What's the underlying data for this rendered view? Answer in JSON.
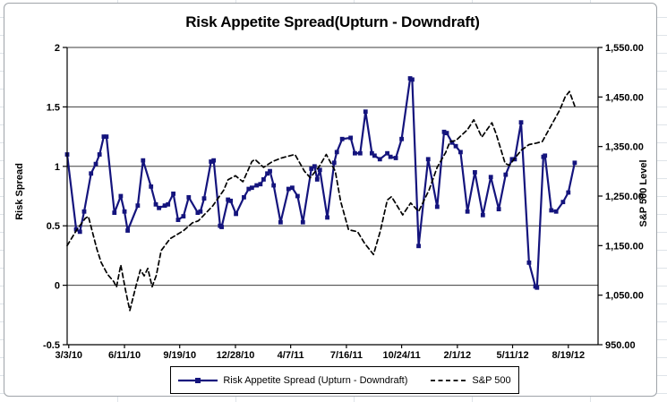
{
  "chart_data": {
    "type": "line",
    "title": "Risk Appetite Spread(Upturn - Downdraft)",
    "grid": "horizontal-only",
    "legend_position": "bottom",
    "plot_background": "#ffffff",
    "gridline_color": "#3c3c3c",
    "axis_line_color": "#000000",
    "left_axis": {
      "label": "Risk Spread",
      "min": -0.5,
      "max": 2,
      "tick_values": [
        2,
        1.5,
        1,
        0.5,
        0,
        -0.5
      ],
      "tick_labels": [
        "2",
        "1.5",
        "1",
        "0.5",
        "0",
        "-0.5"
      ]
    },
    "right_axis": {
      "label": "S&P 500 Level",
      "min": 950,
      "max": 1550,
      "tick_values": [
        1550,
        1450,
        1350,
        1250,
        1150,
        1050,
        950
      ],
      "tick_labels": [
        "1,550.00",
        "1,450.00",
        "1,350.00",
        "1,250.00",
        "1,150.00",
        "1,050.00",
        "950.00"
      ]
    },
    "x_axis": {
      "tick_labels": [
        "3/3/10",
        "6/11/10",
        "9/19/10",
        "12/28/10",
        "4/7/11",
        "7/16/11",
        "10/24/11",
        "2/1/12",
        "5/11/12",
        "8/19/12"
      ],
      "tick_positions": [
        0.003,
        0.108,
        0.212,
        0.317,
        0.421,
        0.526,
        0.63,
        0.735,
        0.839,
        0.944
      ]
    },
    "series": [
      {
        "name": "Risk Appetite Spread (Upturn - Downdraft)",
        "axis": "left",
        "color": "#14147d",
        "style": "solid",
        "marker": "square",
        "points": [
          [
            0.0,
            1.1
          ],
          [
            0.017,
            0.47
          ],
          [
            0.024,
            0.45
          ],
          [
            0.032,
            0.62
          ],
          [
            0.045,
            0.94
          ],
          [
            0.054,
            1.02
          ],
          [
            0.061,
            1.1
          ],
          [
            0.069,
            1.25
          ],
          [
            0.074,
            1.25
          ],
          [
            0.089,
            0.61
          ],
          [
            0.101,
            0.75
          ],
          [
            0.108,
            0.62
          ],
          [
            0.114,
            0.46
          ],
          [
            0.133,
            0.67
          ],
          [
            0.143,
            1.05
          ],
          [
            0.158,
            0.83
          ],
          [
            0.167,
            0.68
          ],
          [
            0.173,
            0.65
          ],
          [
            0.184,
            0.67
          ],
          [
            0.19,
            0.68
          ],
          [
            0.2,
            0.77
          ],
          [
            0.209,
            0.55
          ],
          [
            0.219,
            0.58
          ],
          [
            0.229,
            0.74
          ],
          [
            0.246,
            0.61
          ],
          [
            0.251,
            0.62
          ],
          [
            0.258,
            0.73
          ],
          [
            0.271,
            1.04
          ],
          [
            0.276,
            1.05
          ],
          [
            0.288,
            0.5
          ],
          [
            0.291,
            0.49
          ],
          [
            0.303,
            0.72
          ],
          [
            0.308,
            0.71
          ],
          [
            0.318,
            0.6
          ],
          [
            0.333,
            0.74
          ],
          [
            0.342,
            0.81
          ],
          [
            0.348,
            0.82
          ],
          [
            0.357,
            0.84
          ],
          [
            0.364,
            0.85
          ],
          [
            0.37,
            0.89
          ],
          [
            0.377,
            0.94
          ],
          [
            0.382,
            0.96
          ],
          [
            0.389,
            0.84
          ],
          [
            0.402,
            0.53
          ],
          [
            0.417,
            0.81
          ],
          [
            0.424,
            0.82
          ],
          [
            0.434,
            0.75
          ],
          [
            0.444,
            0.53
          ],
          [
            0.46,
            0.98
          ],
          [
            0.466,
            1.0
          ],
          [
            0.471,
            0.89
          ],
          [
            0.476,
            0.97
          ],
          [
            0.49,
            0.57
          ],
          [
            0.503,
            1.03
          ],
          [
            0.508,
            1.12
          ],
          [
            0.518,
            1.23
          ],
          [
            0.534,
            1.24
          ],
          [
            0.542,
            1.11
          ],
          [
            0.552,
            1.11
          ],
          [
            0.562,
            1.46
          ],
          [
            0.574,
            1.11
          ],
          [
            0.579,
            1.09
          ],
          [
            0.589,
            1.06
          ],
          [
            0.603,
            1.11
          ],
          [
            0.609,
            1.08
          ],
          [
            0.619,
            1.07
          ],
          [
            0.63,
            1.23
          ],
          [
            0.646,
            1.74
          ],
          [
            0.65,
            1.73
          ],
          [
            0.662,
            0.33
          ],
          [
            0.68,
            1.06
          ],
          [
            0.697,
            0.66
          ],
          [
            0.71,
            1.29
          ],
          [
            0.715,
            1.28
          ],
          [
            0.725,
            1.2
          ],
          [
            0.732,
            1.17
          ],
          [
            0.741,
            1.12
          ],
          [
            0.754,
            0.62
          ],
          [
            0.768,
            0.95
          ],
          [
            0.783,
            0.59
          ],
          [
            0.798,
            0.91
          ],
          [
            0.813,
            0.64
          ],
          [
            0.826,
            0.93
          ],
          [
            0.838,
            1.06
          ],
          [
            0.843,
            1.06
          ],
          [
            0.855,
            1.37
          ],
          [
            0.87,
            0.19
          ],
          [
            0.882,
            -0.01
          ],
          [
            0.885,
            -0.02
          ],
          [
            0.897,
            1.08
          ],
          [
            0.9,
            1.09
          ],
          [
            0.912,
            0.63
          ],
          [
            0.921,
            0.62
          ],
          [
            0.934,
            0.7
          ],
          [
            0.944,
            0.78
          ],
          [
            0.956,
            1.03
          ]
        ]
      },
      {
        "name": "S&P 500",
        "axis": "right",
        "color": "#000000",
        "style": "dashed",
        "marker": "none",
        "points": [
          [
            0.0,
            1150
          ],
          [
            0.017,
            1180
          ],
          [
            0.034,
            1205
          ],
          [
            0.04,
            1209
          ],
          [
            0.056,
            1143
          ],
          [
            0.064,
            1116
          ],
          [
            0.076,
            1092
          ],
          [
            0.088,
            1077
          ],
          [
            0.093,
            1066
          ],
          [
            0.101,
            1111
          ],
          [
            0.11,
            1060
          ],
          [
            0.118,
            1019
          ],
          [
            0.13,
            1070
          ],
          [
            0.138,
            1101
          ],
          [
            0.145,
            1089
          ],
          [
            0.152,
            1104
          ],
          [
            0.16,
            1067
          ],
          [
            0.168,
            1090
          ],
          [
            0.177,
            1140
          ],
          [
            0.194,
            1164
          ],
          [
            0.219,
            1180
          ],
          [
            0.236,
            1196
          ],
          [
            0.247,
            1200
          ],
          [
            0.274,
            1230
          ],
          [
            0.295,
            1262
          ],
          [
            0.303,
            1283
          ],
          [
            0.317,
            1291
          ],
          [
            0.331,
            1279
          ],
          [
            0.348,
            1320
          ],
          [
            0.354,
            1324
          ],
          [
            0.37,
            1308
          ],
          [
            0.387,
            1320
          ],
          [
            0.404,
            1327
          ],
          [
            0.429,
            1334
          ],
          [
            0.447,
            1300
          ],
          [
            0.458,
            1287
          ],
          [
            0.475,
            1310
          ],
          [
            0.488,
            1334
          ],
          [
            0.505,
            1300
          ],
          [
            0.515,
            1240
          ],
          [
            0.53,
            1182
          ],
          [
            0.547,
            1178
          ],
          [
            0.56,
            1155
          ],
          [
            0.577,
            1132
          ],
          [
            0.59,
            1180
          ],
          [
            0.603,
            1242
          ],
          [
            0.611,
            1249
          ],
          [
            0.632,
            1212
          ],
          [
            0.647,
            1236
          ],
          [
            0.662,
            1219
          ],
          [
            0.682,
            1263
          ],
          [
            0.697,
            1308
          ],
          [
            0.713,
            1338
          ],
          [
            0.721,
            1360
          ],
          [
            0.732,
            1362
          ],
          [
            0.754,
            1384
          ],
          [
            0.766,
            1404
          ],
          [
            0.781,
            1369
          ],
          [
            0.8,
            1398
          ],
          [
            0.808,
            1376
          ],
          [
            0.825,
            1316
          ],
          [
            0.833,
            1312
          ],
          [
            0.842,
            1325
          ],
          [
            0.856,
            1343
          ],
          [
            0.87,
            1354
          ],
          [
            0.884,
            1357
          ],
          [
            0.895,
            1360
          ],
          [
            0.912,
            1393
          ],
          [
            0.928,
            1424
          ],
          [
            0.938,
            1450
          ],
          [
            0.946,
            1461
          ],
          [
            0.956,
            1432
          ]
        ]
      }
    ]
  }
}
